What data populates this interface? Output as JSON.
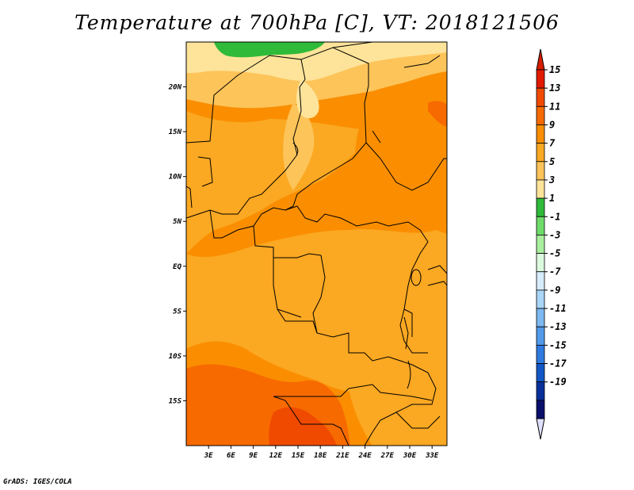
{
  "title": "Temperature at 700hPa [C], VT: 2018121506",
  "footer": "GrADS: IGES/COLA",
  "map": {
    "lon_range": [
      0,
      35
    ],
    "lat_range": [
      -20,
      25
    ],
    "x_tick_labels": [
      "3E",
      "6E",
      "9E",
      "12E",
      "15E",
      "18E",
      "21E",
      "24E",
      "27E",
      "30E",
      "33E"
    ],
    "x_tick_values": [
      3,
      6,
      9,
      12,
      15,
      18,
      21,
      24,
      27,
      30,
      33
    ],
    "y_tick_labels": [
      "20N",
      "15N",
      "10N",
      "5N",
      "EQ",
      "5S",
      "10S",
      "15S"
    ],
    "y_tick_values": [
      20,
      15,
      10,
      5,
      0,
      -5,
      -10,
      -15
    ]
  },
  "colorbar": {
    "labels": [
      "15",
      "13",
      "11",
      "9",
      "7",
      "5",
      "3",
      "1",
      "-1",
      "-3",
      "-5",
      "-7",
      "-9",
      "-11",
      "-13",
      "-15",
      "-17",
      "-19"
    ],
    "colors": [
      "#e01b00",
      "#f04a00",
      "#f76a00",
      "#fa8e00",
      "#fba822",
      "#fdc45a",
      "#fee49a",
      "#2fba3a",
      "#6fdb6a",
      "#a9ef9f",
      "#dbf9dc",
      "#d7ecfb",
      "#a9d5f7",
      "#7db8f0",
      "#539aea",
      "#2f7adf",
      "#1356c6",
      "#0a2f9a",
      "#0a0f6a"
    ],
    "top_arrow_color": "#d81e00",
    "bottom_arrow_color": "#e0e0ff"
  },
  "field_colors": {
    "t13": "#f04a00",
    "t11": "#f76a00",
    "t9": "#fa8e00",
    "t7": "#fba822",
    "t5": "#fdc45a",
    "t3": "#fee49a",
    "t1": "#2fba3a"
  }
}
